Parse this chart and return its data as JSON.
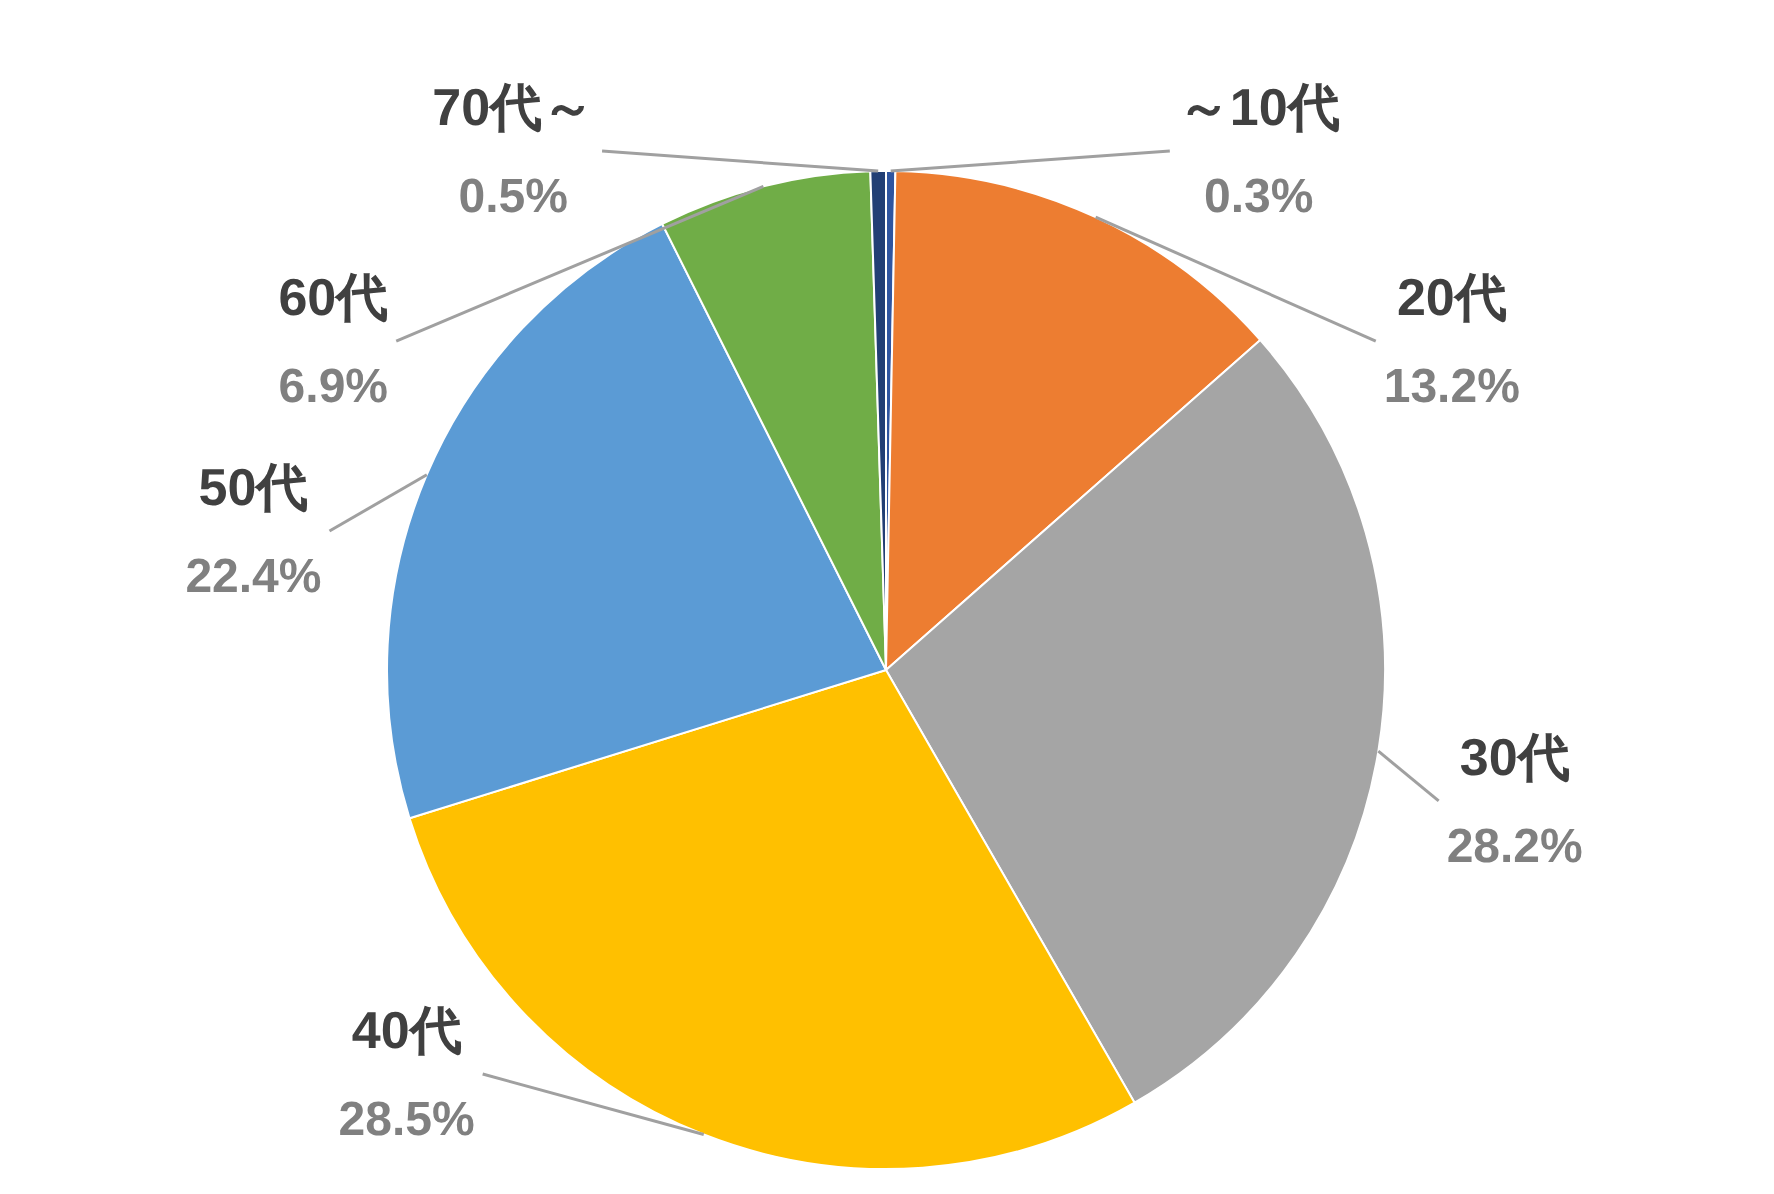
{
  "chart_data": {
    "type": "pie",
    "categories": [
      "～10代",
      "20代",
      "30代",
      "40代",
      "50代",
      "60代",
      "70代～"
    ],
    "values": [
      0.3,
      13.2,
      28.2,
      28.5,
      22.4,
      6.9,
      0.5
    ],
    "colors": [
      "#2f55a0",
      "#ed7d31",
      "#a5a5a5",
      "#ffc000",
      "#5b9bd5",
      "#70ad47",
      "#223f75"
    ],
    "value_labels": [
      "0.3%",
      "13.2%",
      "28.2%",
      "28.5%",
      "22.4%",
      "6.9%",
      "0.5%"
    ]
  }
}
